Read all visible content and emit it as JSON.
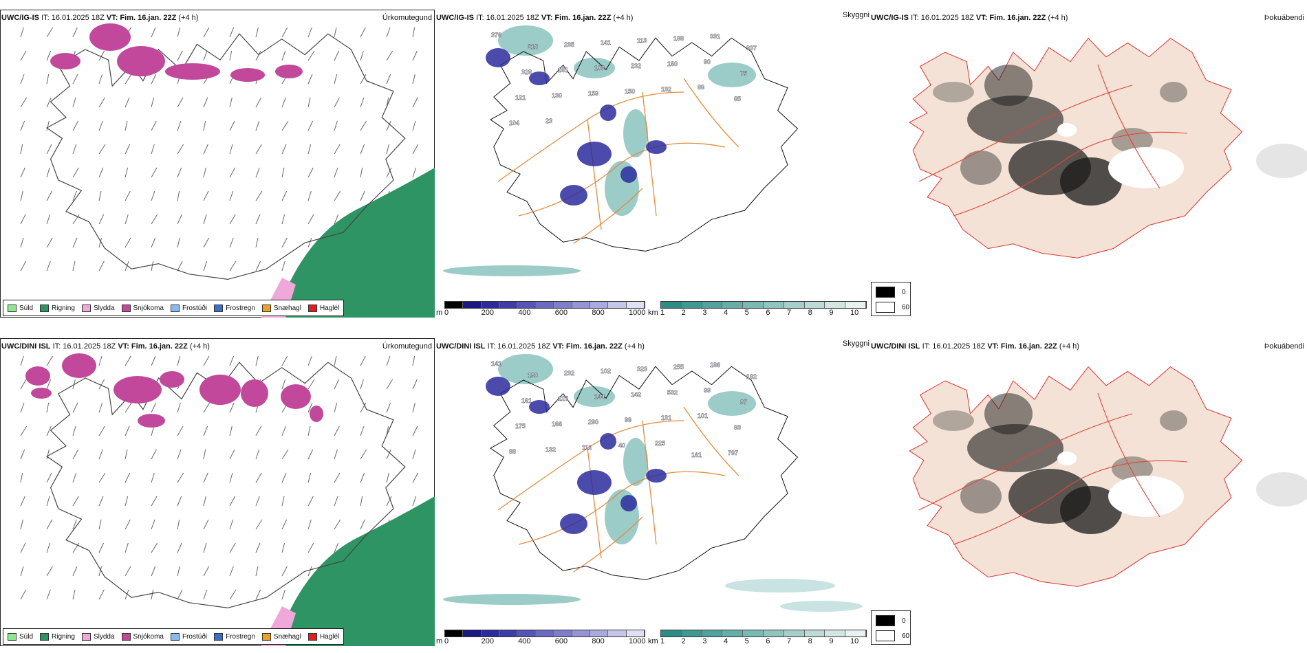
{
  "colors": {
    "snow": "#c1489a",
    "rain": "#2e9464",
    "sleet": "#f0a8d8",
    "orange_roads": "#e58a3a",
    "cloud_low": "#2b2b9e",
    "cloud_high": "#4aa39a"
  },
  "rows": [
    {
      "model": "UWC/IG-IS",
      "it_label": "IT:",
      "it_value": "16.01.2025 18Z",
      "vt_label": "VT:",
      "vt_value": "Fim. 16.jan. 22Z",
      "lead": "(+4 h)"
    },
    {
      "model": "UWC/DINI ISL",
      "it_label": "IT:",
      "it_value": "16.01.2025 18Z",
      "vt_label": "VT:",
      "vt_value": "Fim. 16.jan. 22Z",
      "lead": "(+4 h)"
    }
  ],
  "panel_titles": {
    "precip_type": "Úrkomutegund",
    "cloud": "Skyggni",
    "fog": "Þokuábendi"
  },
  "precip_legend": [
    {
      "label": "Súld",
      "color": "#8de88d"
    },
    {
      "label": "Rigning",
      "color": "#2e9464"
    },
    {
      "label": "Slydda",
      "color": "#f0a8d8"
    },
    {
      "label": "Snjókoma",
      "color": "#c1489a"
    },
    {
      "label": "Frostúði",
      "color": "#8ab8f0"
    },
    {
      "label": "Frostregn",
      "color": "#3a6fc8"
    },
    {
      "label": "Snæhagl",
      "color": "#f0a020"
    },
    {
      "label": "Haglél",
      "color": "#e02020"
    }
  ],
  "cloud_base_bar": {
    "unit": "m",
    "ticks": [
      "0",
      "200",
      "400",
      "600",
      "800",
      "1000"
    ],
    "colors": [
      "#000000",
      "#1a1a80",
      "#2b2b9e",
      "#3d3daa",
      "#5555b5",
      "#6a6ac0",
      "#7e7ecb",
      "#9595d5",
      "#abaae0",
      "#c5c5ea",
      "#e0e0f5"
    ]
  },
  "visibility_bar": {
    "unit": "km",
    "ticks": [
      "1",
      "2",
      "3",
      "4",
      "5",
      "6",
      "7",
      "8",
      "9",
      "10"
    ],
    "colors": [
      "#2e8c86",
      "#3f9892",
      "#52a39d",
      "#66aea8",
      "#7bb9b3",
      "#90c4be",
      "#a6cfca",
      "#bcdbd6",
      "#d2e6e3",
      "#e8f2f1"
    ]
  },
  "fog_legend": [
    {
      "label": "0",
      "color": "#000000"
    },
    {
      "label": "60",
      "color": "#ffffff"
    }
  ],
  "cloud_labels_top": [
    "376",
    "318",
    "235",
    "141",
    "113",
    "188",
    "331",
    "337",
    "328",
    "161",
    "103",
    "232",
    "160",
    "90",
    "75",
    "121",
    "130",
    "159",
    "150",
    "132",
    "88",
    "85",
    "104",
    "23"
  ],
  "cloud_labels_bottom": [
    "141",
    "190",
    "232",
    "102",
    "323",
    "255",
    "186",
    "182",
    "161",
    "127",
    "144",
    "142",
    "532",
    "99",
    "97",
    "175",
    "166",
    "290",
    "99",
    "131",
    "101",
    "83",
    "88",
    "132",
    "112",
    "40",
    "225",
    "161",
    "797"
  ]
}
